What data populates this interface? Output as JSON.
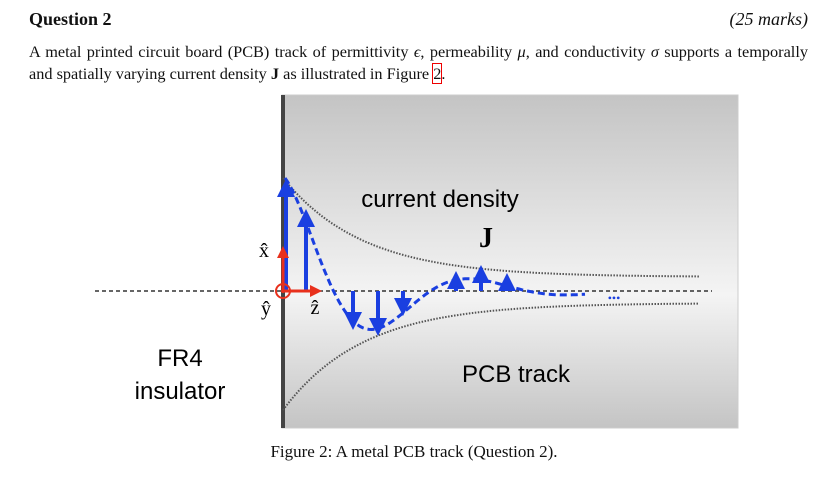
{
  "question": {
    "title": "Question 2",
    "marks": "(25 marks)",
    "body": [
      "A metal printed circuit board (PCB) track of permittivity ",
      "ϵ",
      ", permeability ",
      "μ",
      ", and conductivity ",
      "σ",
      " supports a temporally and spatially varying current density ",
      "J",
      " as illustrated in Figure ",
      "2",
      "."
    ]
  },
  "figure": {
    "labels": {
      "current": "current density",
      "j": "J",
      "x": "x̂",
      "y": "ŷ",
      "z": "ẑ",
      "fr4": "FR4",
      "insulator": "insulator",
      "track": "PCB track",
      "dots": "•••"
    },
    "caption": "Figure 2: A metal PCB track (Question 2)."
  }
}
